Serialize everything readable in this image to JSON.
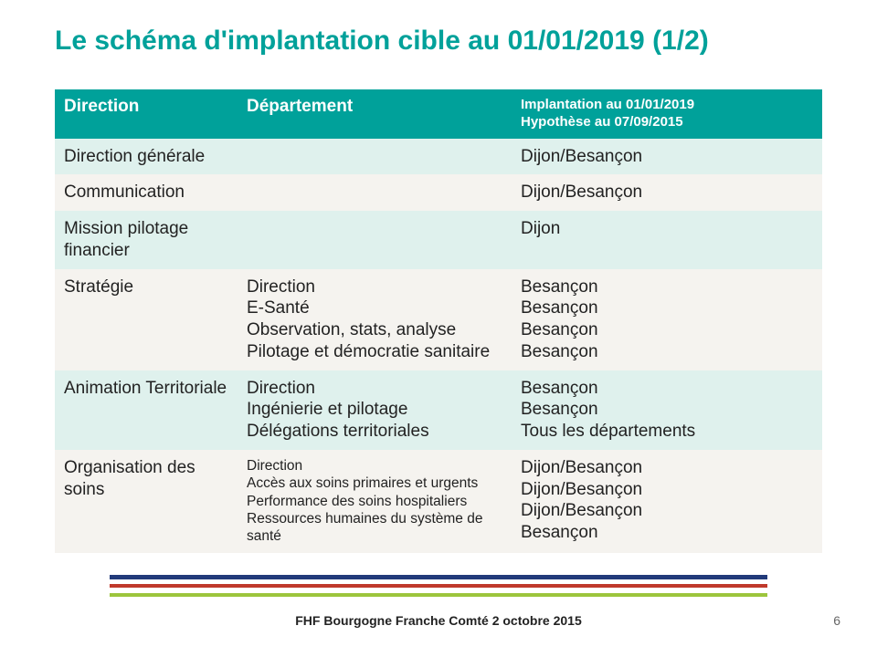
{
  "title": "Le schéma d'implantation cible au 01/01/2019 (1/2)",
  "headers": {
    "col0": "Direction",
    "col1": "Département",
    "col2": "Implantation au 01/01/2019\nHypothèse au 07/09/2015"
  },
  "rows": [
    {
      "shade": "ra",
      "direction": "Direction générale",
      "departement": "",
      "implantation": "Dijon/Besançon",
      "small": false
    },
    {
      "shade": "rb",
      "direction": "Communication",
      "departement": "",
      "implantation": "Dijon/Besançon",
      "small": false
    },
    {
      "shade": "ra",
      "direction": "Mission pilotage financier",
      "departement": "",
      "implantation": "Dijon",
      "small": false
    },
    {
      "shade": "rb",
      "direction": "Stratégie",
      "departement": "Direction\nE-Santé\nObservation, stats, analyse\nPilotage et démocratie sanitaire",
      "implantation": "Besançon\nBesançon\nBesançon\nBesançon",
      "small": false
    },
    {
      "shade": "ra",
      "direction": "Animation Territoriale",
      "departement": "Direction\nIngénierie et pilotage\nDélégations territoriales",
      "implantation": "Besançon\nBesançon\nTous les départements",
      "small": false
    },
    {
      "shade": "rb",
      "direction": "Organisation des soins",
      "departement": "Direction\nAccès aux soins primaires et urgents\nPerformance des soins hospitaliers\nRessources humaines du système de santé",
      "implantation": "Dijon/Besançon\nDijon/Besançon\nDijon/Besançon\nBesançon",
      "small": true
    }
  ],
  "footer_text": "FHF Bourgogne Franche Comté 2 octobre 2015",
  "page_number": "6",
  "colors": {
    "accent": "#00a19a",
    "row_a": "#dff1ed",
    "row_b": "#f5f3ef",
    "line_blue": "#223a7a",
    "line_red": "#c0392b",
    "line_green": "#9cc53c"
  }
}
